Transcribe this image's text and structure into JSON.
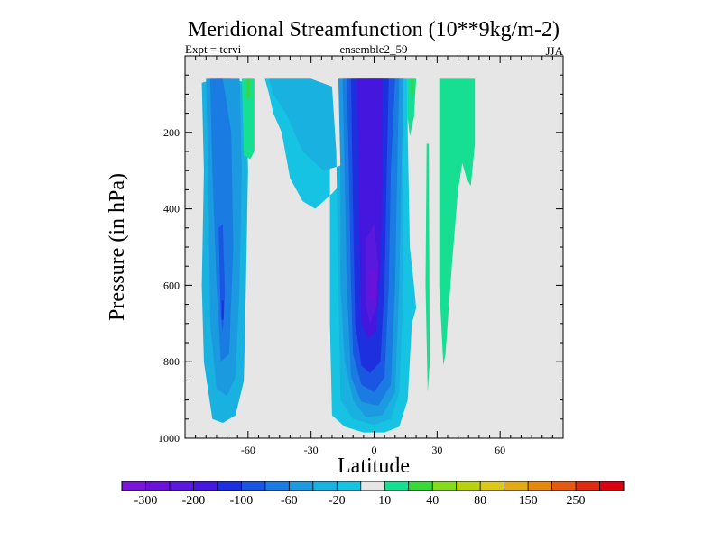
{
  "chart_data": {
    "type": "heatmap",
    "title": "Meridional Streamfunction (10**9kg/m-2)",
    "left_label": "Expt = tcrvi",
    "center_label": "ensemble2_59",
    "right_label": "JJA",
    "xlabel": "Latitude",
    "ylabel": "Pressure (in hPa)",
    "xlim": [
      -90,
      90
    ],
    "ylim": [
      1000,
      0
    ],
    "x_ticks": [
      {
        "value": -60,
        "label": "-60"
      },
      {
        "value": -30,
        "label": "-30"
      },
      {
        "value": 0,
        "label": "0"
      },
      {
        "value": 30,
        "label": "30"
      },
      {
        "value": 60,
        "label": "60"
      }
    ],
    "y_ticks": [
      {
        "value": 200,
        "label": "200"
      },
      {
        "value": 400,
        "label": "400"
      },
      {
        "value": 600,
        "label": "600"
      },
      {
        "value": 800,
        "label": "800"
      },
      {
        "value": 1000,
        "label": "1000"
      }
    ],
    "colorbar": {
      "colors": [
        "#7a16d6",
        "#6a12d8",
        "#5a18dc",
        "#4416de",
        "#1e2fe0",
        "#1a56e2",
        "#1a7ce2",
        "#1b9ae0",
        "#19b1e0",
        "#16c3e2",
        "#e6e6e6",
        "#16de92",
        "#3ad83a",
        "#86da1c",
        "#b8d212",
        "#dac81a",
        "#e2aa16",
        "#e4880e",
        "#e45a12",
        "#de2a10",
        "#dc0010"
      ],
      "labels": [
        {
          "boundary": 1,
          "text": "-300"
        },
        {
          "boundary": 3,
          "text": "-200"
        },
        {
          "boundary": 5,
          "text": "-100"
        },
        {
          "boundary": 7,
          "text": "-60"
        },
        {
          "boundary": 9,
          "text": "-20"
        },
        {
          "boundary": 11,
          "text": "10"
        },
        {
          "boundary": 13,
          "text": "40"
        },
        {
          "boundary": 15,
          "text": "80"
        },
        {
          "boundary": 17,
          "text": "150"
        },
        {
          "boundary": 19,
          "text": "250"
        }
      ]
    },
    "background_color": "#e6e6e6",
    "regions": [
      {
        "name": "sh-cell-light",
        "color": "#19b1e0",
        "points": [
          [
            -82,
            70
          ],
          [
            -75,
            60
          ],
          [
            -68,
            60
          ],
          [
            -61,
            70
          ],
          [
            -60,
            300
          ],
          [
            -61,
            600
          ],
          [
            -62,
            850
          ],
          [
            -66,
            940
          ],
          [
            -72,
            960
          ],
          [
            -77,
            950
          ],
          [
            -81,
            800
          ],
          [
            -82,
            600
          ],
          [
            -81,
            300
          ]
        ]
      },
      {
        "name": "sh-cell-mid",
        "color": "#1b9ae0",
        "points": [
          [
            -80,
            60
          ],
          [
            -75,
            60
          ],
          [
            -70,
            60
          ],
          [
            -64,
            60
          ],
          [
            -63,
            300
          ],
          [
            -64,
            600
          ],
          [
            -66,
            840
          ],
          [
            -70,
            890
          ],
          [
            -75,
            870
          ],
          [
            -78,
            700
          ],
          [
            -79,
            300
          ]
        ]
      },
      {
        "name": "sh-cell-deep",
        "color": "#1a7ce2",
        "points": [
          [
            -78,
            60
          ],
          [
            -72,
            60
          ],
          [
            -68,
            200
          ],
          [
            -67,
            500
          ],
          [
            -69,
            780
          ],
          [
            -73,
            800
          ],
          [
            -75,
            600
          ],
          [
            -77,
            300
          ]
        ]
      },
      {
        "name": "sh-cell-core",
        "color": "#1a56e2",
        "points": [
          [
            -74,
            450
          ],
          [
            -72,
            440
          ],
          [
            -71,
            620
          ],
          [
            -72,
            720
          ],
          [
            -73,
            680
          ]
        ]
      },
      {
        "name": "sh-cell-min",
        "color": "#1e2fe0",
        "points": [
          [
            -72.5,
            640
          ],
          [
            -71.6,
            640
          ],
          [
            -71.6,
            690
          ],
          [
            -72.5,
            690
          ]
        ]
      },
      {
        "name": "green-tongue-a",
        "color": "#16de92",
        "points": [
          [
            -63,
            60
          ],
          [
            -57,
            60
          ],
          [
            -57,
            250
          ],
          [
            -59,
            270
          ],
          [
            -62,
            260
          ]
        ]
      },
      {
        "name": "green-sliver-a",
        "color": "#3ad83a",
        "points": [
          [
            -60.5,
            60
          ],
          [
            -59.2,
            60
          ],
          [
            -59.2,
            110
          ],
          [
            -60.5,
            110
          ]
        ]
      },
      {
        "name": "main-envelope",
        "color": "#16c3e2",
        "points": [
          [
            -52,
            60
          ],
          [
            -30,
            60
          ],
          [
            -24,
            80
          ],
          [
            -21,
            200
          ],
          [
            -21,
            700
          ],
          [
            -20,
            940
          ],
          [
            -14,
            970
          ],
          [
            -5,
            985
          ],
          [
            5,
            985
          ],
          [
            12,
            970
          ],
          [
            16,
            900
          ],
          [
            18,
            700
          ],
          [
            20,
            660
          ],
          [
            19,
            600
          ],
          [
            17,
            500
          ],
          [
            16,
            200
          ],
          [
            16,
            60
          ],
          [
            -2,
            60
          ],
          [
            -10,
            300
          ],
          [
            -20,
            360
          ],
          [
            -28,
            400
          ],
          [
            -34,
            380
          ],
          [
            -40,
            320
          ],
          [
            -44,
            200
          ],
          [
            -48,
            150
          ],
          [
            -50,
            100
          ]
        ]
      },
      {
        "name": "main-layer-2",
        "color": "#19b1e0",
        "points": [
          [
            -50,
            60
          ],
          [
            -30,
            60
          ],
          [
            -20,
            80
          ],
          [
            -18,
            250
          ],
          [
            -17,
            600
          ],
          [
            -16,
            900
          ],
          [
            -10,
            950
          ],
          [
            0,
            965
          ],
          [
            8,
            950
          ],
          [
            12,
            880
          ],
          [
            14,
            600
          ],
          [
            14,
            60
          ],
          [
            -2,
            60
          ],
          [
            -12,
            280
          ],
          [
            -24,
            300
          ],
          [
            -34,
            250
          ],
          [
            -42,
            150
          ],
          [
            -48,
            100
          ]
        ]
      },
      {
        "name": "main-layer-3",
        "color": "#1b9ae0",
        "points": [
          [
            -17,
            60
          ],
          [
            -7,
            60
          ],
          [
            14,
            60
          ],
          [
            13,
            300
          ],
          [
            12,
            600
          ],
          [
            10,
            880
          ],
          [
            4,
            940
          ],
          [
            -4,
            945
          ],
          [
            -10,
            900
          ],
          [
            -14,
            800
          ],
          [
            -16,
            600
          ],
          [
            -16,
            300
          ]
        ]
      },
      {
        "name": "main-layer-4",
        "color": "#1a7ce2",
        "points": [
          [
            -15,
            60
          ],
          [
            12,
            60
          ],
          [
            11,
            300
          ],
          [
            10,
            600
          ],
          [
            8,
            860
          ],
          [
            2,
            915
          ],
          [
            -6,
            905
          ],
          [
            -11,
            840
          ],
          [
            -13,
            600
          ],
          [
            -14,
            300
          ]
        ]
      },
      {
        "name": "main-layer-5",
        "color": "#1a56e2",
        "points": [
          [
            -13,
            60
          ],
          [
            10,
            60
          ],
          [
            8,
            300
          ],
          [
            7,
            600
          ],
          [
            5,
            840
          ],
          [
            0,
            880
          ],
          [
            -6,
            860
          ],
          [
            -10,
            780
          ],
          [
            -11,
            600
          ],
          [
            -12,
            300
          ]
        ]
      },
      {
        "name": "main-layer-6",
        "color": "#1e2fe0",
        "points": [
          [
            -11,
            60
          ],
          [
            7,
            60
          ],
          [
            6,
            300
          ],
          [
            5,
            600
          ],
          [
            3,
            800
          ],
          [
            -2,
            830
          ],
          [
            -6,
            810
          ],
          [
            -9,
            700
          ],
          [
            -10,
            400
          ]
        ]
      },
      {
        "name": "main-layer-7",
        "color": "#4416de",
        "points": [
          [
            -8,
            60
          ],
          [
            4,
            60
          ],
          [
            4,
            300
          ],
          [
            3,
            550
          ],
          [
            1,
            720
          ],
          [
            -3,
            740
          ],
          [
            -6,
            700
          ],
          [
            -7,
            450
          ]
        ]
      },
      {
        "name": "main-layer-8",
        "color": "#5a18dc",
        "points": [
          [
            -4,
            480
          ],
          [
            0,
            440
          ],
          [
            2,
            550
          ],
          [
            1,
            660
          ],
          [
            -2,
            700
          ],
          [
            -4,
            650
          ]
        ]
      },
      {
        "name": "main-layer-9",
        "color": "#6a12d8",
        "points": [
          [
            -2,
            560
          ],
          [
            1,
            560
          ],
          [
            1,
            640
          ],
          [
            -2,
            640
          ]
        ]
      },
      {
        "name": "green-tongue-b",
        "color": "#16de92",
        "points": [
          [
            16,
            60
          ],
          [
            20,
            60
          ],
          [
            19,
            160
          ],
          [
            17,
            210
          ],
          [
            16,
            160
          ]
        ]
      },
      {
        "name": "green-sliver-b",
        "color": "#3ad83a",
        "points": [
          [
            17.5,
            60
          ],
          [
            18.8,
            60
          ],
          [
            18.8,
            100
          ],
          [
            17.5,
            100
          ]
        ]
      },
      {
        "name": "green-sliver-c",
        "color": "#16de92",
        "points": [
          [
            25,
            230
          ],
          [
            26,
            230
          ],
          [
            26.5,
            800
          ],
          [
            25.5,
            880
          ],
          [
            24.5,
            600
          ]
        ]
      },
      {
        "name": "nh-green-cell",
        "color": "#16de92",
        "points": [
          [
            31,
            60
          ],
          [
            48,
            60
          ],
          [
            48,
            230
          ],
          [
            46,
            340
          ],
          [
            44,
            320
          ],
          [
            42,
            280
          ],
          [
            40,
            350
          ],
          [
            37,
            550
          ],
          [
            34,
            780
          ],
          [
            33,
            810
          ],
          [
            31,
            600
          ],
          [
            31,
            300
          ]
        ]
      }
    ]
  }
}
